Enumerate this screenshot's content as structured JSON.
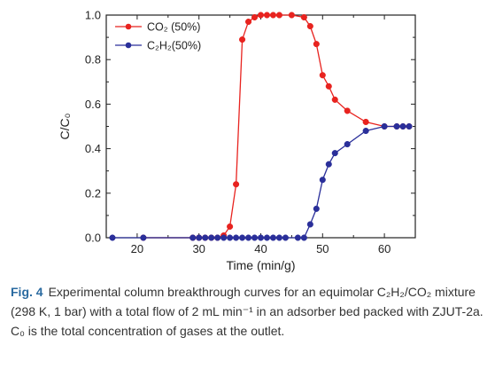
{
  "caption": {
    "label": "Fig. 4",
    "text": "Experimental column breakthrough curves for an equimolar C₂H₂/CO₂ mixture (298 K, 1 bar) with a total flow of 2 mL min⁻¹ in an adsorber bed packed with ZJUT-2a. C₀ is the total concentration of gases at the outlet."
  },
  "chart_data": {
    "type": "scatter-line",
    "xlabel": "Time (min/g)",
    "ylabel": "C/C₀",
    "xlim": [
      15,
      65
    ],
    "ylim": [
      0.0,
      1.0
    ],
    "xticks": [
      20,
      30,
      40,
      50,
      60
    ],
    "yticks": [
      0.0,
      0.2,
      0.4,
      0.6,
      0.8,
      1.0
    ],
    "xtick_labels": [
      "20",
      "30",
      "40",
      "50",
      "60"
    ],
    "ytick_labels": [
      "0.0",
      "0.2",
      "0.4",
      "0.6",
      "0.8",
      "1.0"
    ],
    "legend": "top-left",
    "series": [
      {
        "name": "CO₂ (50%)",
        "color": "#e8231f",
        "marker": "circle",
        "points": [
          [
            21,
            0.0
          ],
          [
            29,
            0.0
          ],
          [
            30,
            0.0
          ],
          [
            31,
            0.0
          ],
          [
            32,
            0.0
          ],
          [
            33,
            0.0
          ],
          [
            34,
            0.01
          ],
          [
            35,
            0.05
          ],
          [
            36,
            0.24
          ],
          [
            37,
            0.89
          ],
          [
            38,
            0.97
          ],
          [
            39,
            0.99
          ],
          [
            40,
            1.0
          ],
          [
            41,
            1.0
          ],
          [
            42,
            1.0
          ],
          [
            43,
            1.0
          ],
          [
            45,
            1.0
          ],
          [
            47,
            0.99
          ],
          [
            48,
            0.95
          ],
          [
            49,
            0.87
          ],
          [
            50,
            0.73
          ],
          [
            51,
            0.68
          ],
          [
            52,
            0.62
          ],
          [
            54,
            0.57
          ],
          [
            57,
            0.52
          ],
          [
            60,
            0.5
          ],
          [
            62,
            0.5
          ],
          [
            63,
            0.5
          ],
          [
            64,
            0.5
          ]
        ]
      },
      {
        "name": "C₂H₂(50%)",
        "color": "#2a2f9a",
        "marker": "circle",
        "points": [
          [
            16,
            0.0
          ],
          [
            21,
            0.0
          ],
          [
            29,
            0.0
          ],
          [
            30,
            0.0
          ],
          [
            31,
            0.0
          ],
          [
            32,
            0.0
          ],
          [
            33,
            0.0
          ],
          [
            34,
            0.0
          ],
          [
            35,
            0.0
          ],
          [
            36,
            0.0
          ],
          [
            37,
            0.0
          ],
          [
            38,
            0.0
          ],
          [
            39,
            0.0
          ],
          [
            40,
            0.0
          ],
          [
            41,
            0.0
          ],
          [
            42,
            0.0
          ],
          [
            43,
            0.0
          ],
          [
            44,
            0.0
          ],
          [
            46,
            0.0
          ],
          [
            47,
            0.0
          ],
          [
            48,
            0.06
          ],
          [
            49,
            0.13
          ],
          [
            50,
            0.26
          ],
          [
            51,
            0.33
          ],
          [
            52,
            0.38
          ],
          [
            54,
            0.42
          ],
          [
            57,
            0.48
          ],
          [
            60,
            0.5
          ],
          [
            62,
            0.5
          ],
          [
            63,
            0.5
          ],
          [
            64,
            0.5
          ]
        ]
      }
    ]
  }
}
